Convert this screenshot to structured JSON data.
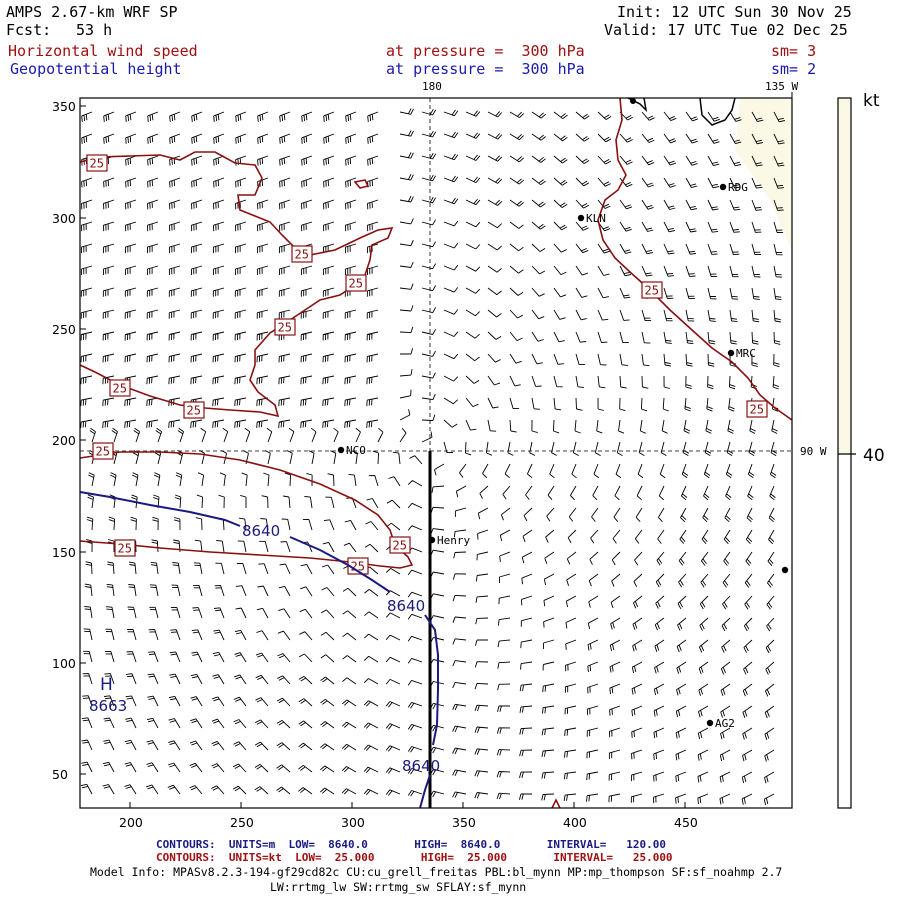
{
  "header": {
    "model": "AMPS 2.67-km WRF SP",
    "fcst_label": "Fcst:",
    "fcst_value": "53 h",
    "init": "Init: 12 UTC Sun 30 Nov 25",
    "valid": "Valid: 17 UTC Tue 02 Dec 25",
    "field1": "Horizontal wind speed",
    "field2": "Geopotential height",
    "level1": "at pressure =  300 hPa",
    "level2": "at pressure =  300 hPa",
    "sm1": "sm= 3",
    "sm2": "sm= 2"
  },
  "map": {
    "meridian_top_label": "180",
    "meridian_right_top_label": "135 W",
    "parallel_label": "90 W",
    "xticks": [
      "200",
      "250",
      "300",
      "350",
      "400",
      "450"
    ],
    "yticks": [
      "350",
      "300",
      "250",
      "200",
      "150",
      "100",
      "50"
    ],
    "stations": [
      {
        "name": "RDG"
      },
      {
        "name": "KLN"
      },
      {
        "name": "NCO"
      },
      {
        "name": "Henry"
      },
      {
        "name": "MRC"
      },
      {
        "name": "AG2"
      }
    ],
    "height_labels": [
      "8640",
      "8640",
      "8640"
    ],
    "high_label": "H",
    "high_value": "8663",
    "wind_labels": [
      "25",
      "25",
      "25",
      "25",
      "25",
      "25",
      "25",
      "25",
      "25",
      "25",
      "25",
      "25"
    ]
  },
  "colorbar": {
    "unit": "kt",
    "tick": "40"
  },
  "footer": {
    "height_line": "CONTOURS:  UNITS=m  LOW=  8640.0       HIGH=  8640.0       INTERVAL=   120.00",
    "wind_line": "CONTOURS:  UNITS=kt  LOW=  25.000       HIGH=  25.000       INTERVAL=   25.000",
    "info1": "Model Info: MPASv8.2.3-194-gf29cd82c CU:cu_grell_freitas PBL:bl_mynn MP:mp_thompson SF:sf_noahmp 2.7",
    "info2": "LW:rrtmg_lw SW:rrtmg_sw SFLAY:sf_mynn"
  },
  "colors": {
    "height_contour": "#1a1a80",
    "wind_contour": "#8a1010",
    "colorbar_fill": "#fbf8e6",
    "barb": "#000000"
  }
}
